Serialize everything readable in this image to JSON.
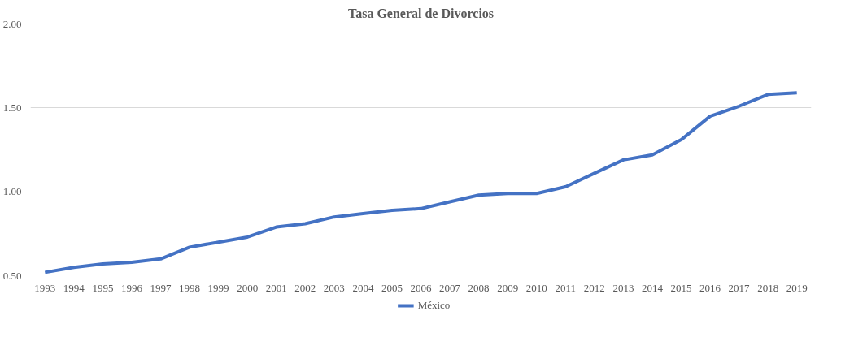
{
  "chart_data": {
    "type": "line",
    "title": "Tasa General de Divorcios",
    "categories": [
      "1993",
      "1994",
      "1995",
      "1996",
      "1997",
      "1998",
      "1999",
      "2000",
      "2001",
      "2002",
      "2003",
      "2004",
      "2005",
      "2006",
      "2007",
      "2008",
      "2009",
      "2010",
      "2011",
      "2012",
      "2013",
      "2014",
      "2015",
      "2016",
      "2017",
      "2018",
      "2019"
    ],
    "series": [
      {
        "name": "México",
        "color": "#4472c4",
        "values": [
          0.52,
          0.55,
          0.57,
          0.58,
          0.6,
          0.67,
          0.7,
          0.73,
          0.79,
          0.81,
          0.85,
          0.87,
          0.89,
          0.9,
          0.94,
          0.98,
          0.99,
          0.99,
          1.03,
          1.11,
          1.19,
          1.22,
          1.31,
          1.45,
          1.51,
          1.58,
          1.59
        ]
      }
    ],
    "ylim": [
      0.5,
      2.0
    ],
    "yticks": [
      {
        "value": 0.5,
        "label": "0.50"
      },
      {
        "value": 1.0,
        "label": "1.00"
      },
      {
        "value": 1.5,
        "label": "1.50"
      },
      {
        "value": 2.0,
        "label": "2.00"
      }
    ],
    "grid": "y",
    "legend": "bottom",
    "marker": "none",
    "line_style": "solid"
  }
}
